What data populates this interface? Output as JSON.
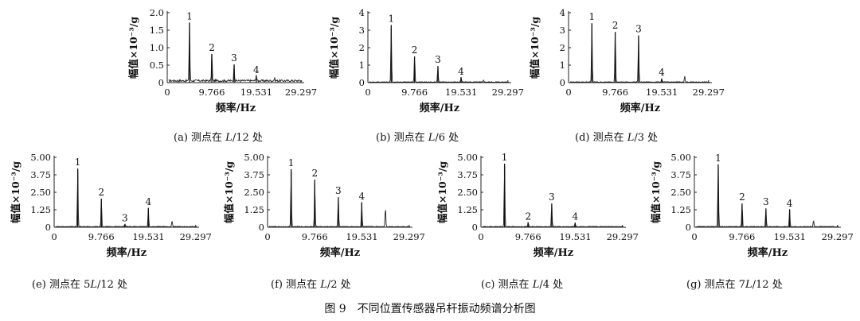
{
  "figure_caption": "图 9　不同位置传感器吊杆振动频谱分析图",
  "chart_data": [
    {
      "type": "line",
      "panel_label": "(a) 测点在 L/12 处",
      "caption_prefix": "(a) 测点在 ",
      "caption_var": "L",
      "caption_rest": "/12 处",
      "xlabel": "频率/Hz",
      "ylabel": "幅值×10⁻³/g",
      "xlim": [
        0,
        30
      ],
      "xticks": [
        "0",
        "9.766",
        "19.531",
        "29.297"
      ],
      "xtick_values": [
        0,
        9.766,
        19.531,
        29.297
      ],
      "ylim": [
        0,
        2.0
      ],
      "yticks": [
        "0",
        "0.5",
        "1.0",
        "1.5",
        "2.0"
      ],
      "ytick_values": [
        0,
        0.5,
        1.0,
        1.5,
        2.0
      ],
      "noise": 0.06,
      "peaks": [
        {
          "label": "1",
          "x": 4.88,
          "y": 1.72
        },
        {
          "label": "2",
          "x": 9.77,
          "y": 0.82
        },
        {
          "label": "3",
          "x": 14.65,
          "y": 0.52
        },
        {
          "label": "4",
          "x": 19.5,
          "y": 0.18
        }
      ],
      "extra_peaks": [
        {
          "x": 23.5,
          "y": 0.08
        }
      ]
    },
    {
      "type": "line",
      "panel_label": "(b) 测点在 L/6 处",
      "caption_prefix": "(b) 测点在 ",
      "caption_var": "L",
      "caption_rest": "/6 处",
      "xlabel": "频率/Hz",
      "ylabel": "幅值×10⁻³/g",
      "xlim": [
        0,
        30
      ],
      "xticks": [
        "0",
        "9.766",
        "19.531",
        "29.297"
      ],
      "xtick_values": [
        0,
        9.766,
        19.531,
        29.297
      ],
      "ylim": [
        0,
        4
      ],
      "yticks": [
        "0",
        "1",
        "2",
        "3",
        "4"
      ],
      "ytick_values": [
        0,
        1,
        2,
        3,
        4
      ],
      "noise": 0.04,
      "peaks": [
        {
          "label": "1",
          "x": 4.88,
          "y": 3.3
        },
        {
          "label": "2",
          "x": 9.77,
          "y": 1.5
        },
        {
          "label": "3",
          "x": 14.65,
          "y": 0.95
        },
        {
          "label": "4",
          "x": 19.5,
          "y": 0.28
        }
      ],
      "extra_peaks": [
        {
          "x": 24.2,
          "y": 0.12
        }
      ]
    },
    {
      "type": "line",
      "panel_label": "(d) 测点在 L/3 处",
      "caption_prefix": "(d) 测点在 ",
      "caption_var": "L",
      "caption_rest": "/3 处",
      "xlabel": "频率/Hz",
      "ylabel": "幅值×10⁻³/g",
      "xlim": [
        0,
        30
      ],
      "xticks": [
        "0",
        "9.766",
        "19.531",
        "29.297"
      ],
      "xtick_values": [
        0,
        9.766,
        19.531,
        29.297
      ],
      "ylim": [
        0,
        4
      ],
      "yticks": [
        "0",
        "1",
        "2",
        "3",
        "4"
      ],
      "ytick_values": [
        0,
        1,
        2,
        3,
        4
      ],
      "noise": 0.04,
      "peaks": [
        {
          "label": "1",
          "x": 4.88,
          "y": 3.4
        },
        {
          "label": "2",
          "x": 9.77,
          "y": 2.9
        },
        {
          "label": "3",
          "x": 14.65,
          "y": 2.7
        },
        {
          "label": "4",
          "x": 19.5,
          "y": 0.22
        }
      ],
      "extra_peaks": [
        {
          "x": 24.3,
          "y": 0.35
        }
      ]
    },
    {
      "type": "line",
      "panel_label": "(e) 测点在 5L/12 处",
      "caption_prefix": "(e) 测点在 5",
      "caption_var": "L",
      "caption_rest": "/12 处",
      "xlabel": "频率/Hz",
      "ylabel": "幅值×10⁻³/g",
      "xlim": [
        0,
        30
      ],
      "xticks": [
        "0",
        "9.766",
        "19.531",
        "29.297"
      ],
      "xtick_values": [
        0,
        9.766,
        19.531,
        29.297
      ],
      "ylim": [
        0,
        5.0
      ],
      "yticks": [
        "0",
        "1.25",
        "2.50",
        "3.75",
        "5.00"
      ],
      "ytick_values": [
        0,
        1.25,
        2.5,
        3.75,
        5.0
      ],
      "noise": 0.05,
      "peaks": [
        {
          "label": "1",
          "x": 4.88,
          "y": 4.2
        },
        {
          "label": "2",
          "x": 9.77,
          "y": 2.05
        },
        {
          "label": "3",
          "x": 14.65,
          "y": 0.2
        },
        {
          "label": "4",
          "x": 19.5,
          "y": 1.35
        }
      ],
      "extra_peaks": [
        {
          "x": 24.4,
          "y": 0.45
        }
      ]
    },
    {
      "type": "line",
      "panel_label": "(f) 测点在 L/2 处",
      "caption_prefix": "(f) 测点在 ",
      "caption_var": "L",
      "caption_rest": "/2 处",
      "xlabel": "频率/Hz",
      "ylabel": "幅值×10⁻³/g",
      "xlim": [
        0,
        30
      ],
      "xticks": [
        "0",
        "9.766",
        "19.531",
        "29.297"
      ],
      "xtick_values": [
        0,
        9.766,
        19.531,
        29.297
      ],
      "ylim": [
        0,
        5.0
      ],
      "yticks": [
        "0",
        "1.25",
        "2.50",
        "3.75",
        "5.00"
      ],
      "ytick_values": [
        0,
        1.25,
        2.5,
        3.75,
        5.0
      ],
      "noise": 0.05,
      "peaks": [
        {
          "label": "1",
          "x": 4.88,
          "y": 4.15
        },
        {
          "label": "2",
          "x": 9.77,
          "y": 3.4
        },
        {
          "label": "3",
          "x": 14.65,
          "y": 2.15
        },
        {
          "label": "4",
          "x": 19.5,
          "y": 1.75
        }
      ],
      "extra_peaks": [
        {
          "x": 24.4,
          "y": 1.4
        }
      ]
    },
    {
      "type": "line",
      "panel_label": "(c) 测点在 L/4 处",
      "caption_prefix": "(c) 测点在 ",
      "caption_var": "L",
      "caption_rest": "/4 处",
      "xlabel": "频率/Hz",
      "ylabel": "幅值×10⁻³/g",
      "xlim": [
        0,
        30
      ],
      "xticks": [
        "0",
        "9.766",
        "19.531",
        "29.297"
      ],
      "xtick_values": [
        0,
        9.766,
        19.531,
        29.297
      ],
      "ylim": [
        0,
        5.0
      ],
      "yticks": [
        "0",
        "1.25",
        "2.50",
        "3.75",
        "5.00"
      ],
      "ytick_values": [
        0,
        1.25,
        2.5,
        3.75,
        5.0
      ],
      "noise": 0.05,
      "peaks": [
        {
          "label": "1",
          "x": 4.88,
          "y": 4.55
        },
        {
          "label": "2",
          "x": 9.77,
          "y": 0.32
        },
        {
          "label": "3",
          "x": 14.65,
          "y": 1.7
        },
        {
          "label": "4",
          "x": 19.5,
          "y": 0.3
        }
      ],
      "extra_peaks": []
    },
    {
      "type": "line",
      "panel_label": "(g) 测点在 7L/12 处",
      "caption_prefix": "(g) 测点在 7",
      "caption_var": "L",
      "caption_rest": "/12 处",
      "xlabel": "频率/Hz",
      "ylabel": "幅值×10⁻³/g",
      "xlim": [
        0,
        30
      ],
      "xticks": [
        "0",
        "9.766",
        "19.531",
        "29.297"
      ],
      "xtick_values": [
        0,
        9.766,
        19.531,
        29.297
      ],
      "ylim": [
        0,
        5.0
      ],
      "yticks": [
        "0",
        "1.25",
        "2.50",
        "3.75",
        "5.00"
      ],
      "ytick_values": [
        0,
        1.25,
        2.5,
        3.75,
        5.0
      ],
      "noise": 0.05,
      "peaks": [
        {
          "label": "1",
          "x": 4.88,
          "y": 4.5
        },
        {
          "label": "2",
          "x": 9.77,
          "y": 1.7
        },
        {
          "label": "3",
          "x": 14.65,
          "y": 1.35
        },
        {
          "label": "4",
          "x": 19.5,
          "y": 1.25
        }
      ],
      "extra_peaks": [
        {
          "x": 24.4,
          "y": 0.45
        }
      ]
    }
  ]
}
